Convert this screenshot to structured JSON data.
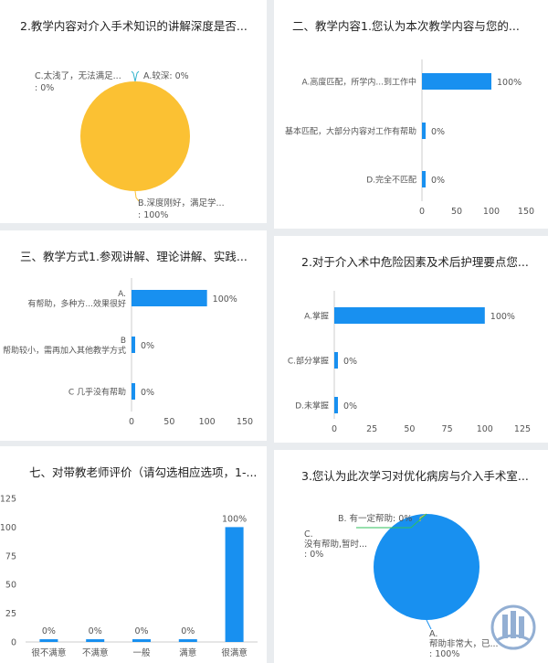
{
  "chart_data": [
    {
      "type": "pie",
      "title": "2.教学内容对介入手术知识的讲解深度是否...",
      "slices": [
        {
          "name": "A.较深",
          "value": 0,
          "percent": "0%",
          "color": "#34b4cc"
        },
        {
          "name": "B.深度刚好，满足学...",
          "value": 100,
          "percent": "100%",
          "color": "#fbc133"
        },
        {
          "name": "C.太浅了，无法满足...",
          "value": 0,
          "percent": "0%",
          "color": "#34b4cc"
        }
      ],
      "labels": [
        {
          "lines": [
            "A.较深: 0%"
          ]
        },
        {
          "lines": [
            "B.深度刚好，满足学...",
            ": 100%"
          ]
        },
        {
          "lines": [
            "C.太浅了，无法满足...",
            ": 0%"
          ]
        }
      ]
    },
    {
      "type": "bar",
      "orientation": "horizontal",
      "title": "二、教学内容1.您认为本次教学内容与您的...",
      "categories": [
        "A.高度匹配，所学内...到工作中",
        "基本匹配，大部分内容对工作有帮助",
        "D.完全不匹配"
      ],
      "values": [
        100,
        0,
        0
      ],
      "value_labels": [
        "100%",
        "0%",
        "0%"
      ],
      "xticks": [
        "0",
        "50",
        "100",
        "150"
      ],
      "xlim": [
        0,
        150
      ],
      "color": "#1890f0"
    },
    {
      "type": "bar",
      "orientation": "horizontal",
      "title": "三、教学方式1.参观讲解、理论讲解、实践...",
      "categories": [
        {
          "lines": [
            "A.",
            "有帮助，多种方...效果很好"
          ]
        },
        {
          "lines": [
            "B",
            "帮助较小，需再加入其他教学方式"
          ]
        },
        {
          "lines": [
            "C 几乎没有帮助"
          ]
        }
      ],
      "values": [
        100,
        0,
        0
      ],
      "value_labels": [
        "100%",
        "0%",
        "0%"
      ],
      "xticks": [
        "0",
        "50",
        "100",
        "150"
      ],
      "xlim": [
        0,
        150
      ],
      "color": "#1890f0"
    },
    {
      "type": "bar",
      "orientation": "horizontal",
      "title": "2.对于介入术中危险因素及术后护理要点您...",
      "categories": [
        "A.掌握",
        "C.部分掌握",
        "D.未掌握"
      ],
      "values": [
        100,
        0,
        0
      ],
      "value_labels": [
        "100%",
        "0%",
        "0%"
      ],
      "xticks": [
        "0",
        "25",
        "50",
        "75",
        "100",
        "125"
      ],
      "xlim": [
        0,
        125
      ],
      "color": "#1890f0"
    },
    {
      "type": "bar",
      "orientation": "vertical",
      "title": "七、对带教老师评价（请勾选相应选项，1-...",
      "categories": [
        "很不满意",
        "不满意",
        "一般",
        "满意",
        "很满意"
      ],
      "values": [
        0,
        0,
        0,
        0,
        100
      ],
      "value_labels": [
        "0%",
        "0%",
        "0%",
        "0%",
        "100%"
      ],
      "yticks": [
        "0",
        "25",
        "50",
        "75",
        "100",
        "125"
      ],
      "ylim": [
        0,
        125
      ],
      "color": "#1890f0"
    },
    {
      "type": "pie",
      "title": "3.您认为此次学习对优化病房与介入手术室...",
      "slices": [
        {
          "name": "A.帮助非常大，已...",
          "value": 100,
          "percent": "100%",
          "color": "#1890f0"
        },
        {
          "name": "B. 有一定帮助",
          "value": 0,
          "percent": "0%",
          "color": "#fbc133"
        },
        {
          "name": "C.没有帮助,暂时...",
          "value": 0,
          "percent": "0%",
          "color": "#2fc25b"
        }
      ],
      "labels": [
        {
          "lines": [
            "A.",
            "帮助非常大，已...",
            ": 100%"
          ]
        },
        {
          "lines": [
            "B. 有一定帮助: 0%"
          ]
        },
        {
          "lines": [
            "C.",
            "没有帮助,暂时...",
            ": 0%"
          ]
        }
      ]
    }
  ],
  "colors": {
    "axis": "#cccccc",
    "text": "#555555",
    "title": "#222222"
  },
  "watermark_icon": "hospital-logo"
}
